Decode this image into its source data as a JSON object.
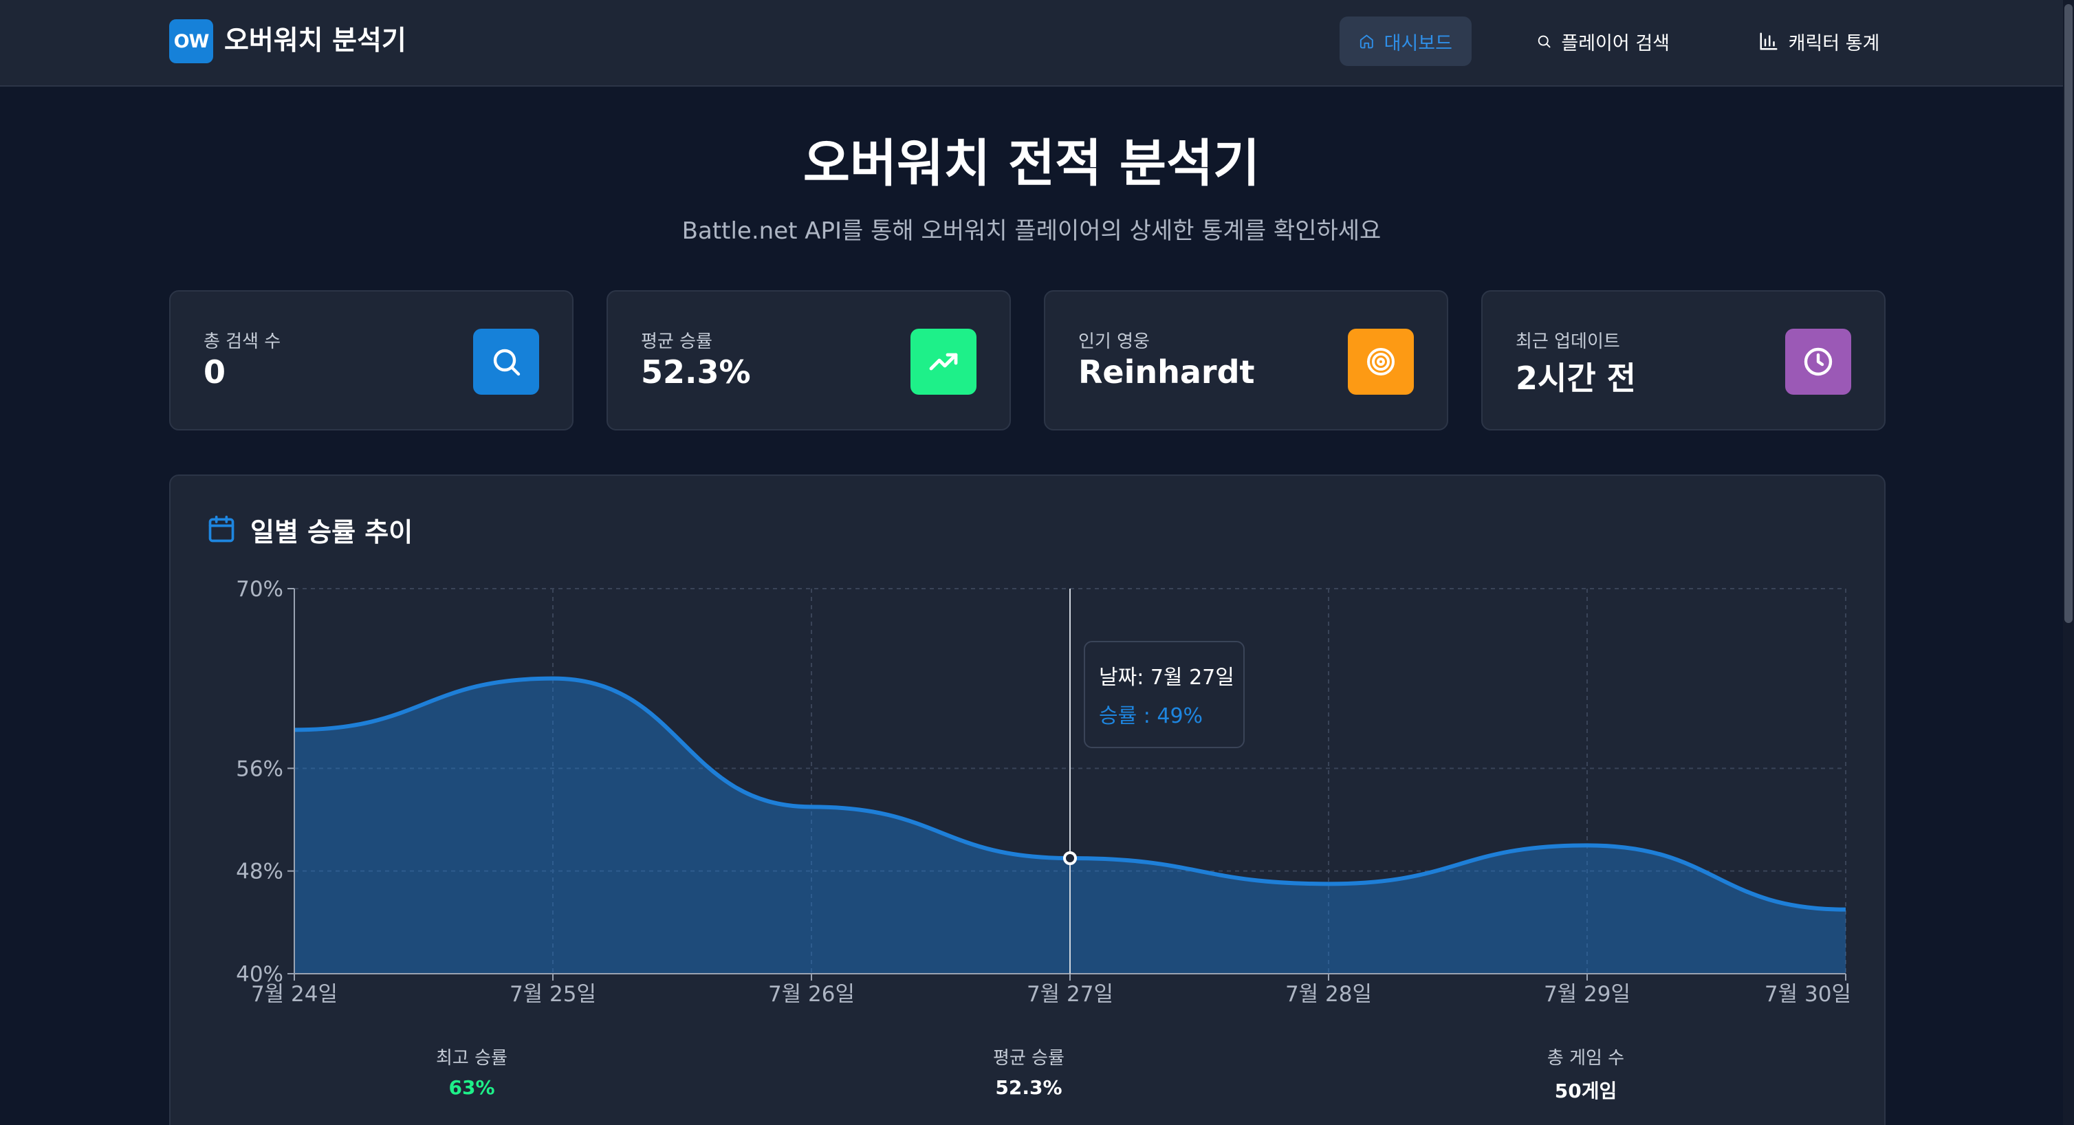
{
  "nav": {
    "logo_badge": "OW",
    "logo_text": "오버워치 분석기",
    "items": [
      {
        "label": "대시보드",
        "icon": "home-icon",
        "active": true
      },
      {
        "label": "플레이어 검색",
        "icon": "search-icon",
        "active": false
      },
      {
        "label": "캐릭터 통계",
        "icon": "bar-chart-icon",
        "active": false
      }
    ]
  },
  "hero": {
    "title": "오버워치 전적 분석기",
    "subtitle": "Battle.net API를 통해 오버워치 플레이어의 상세한 통계를 확인하세요"
  },
  "stats": [
    {
      "label": "총 검색 수",
      "value": "0",
      "icon": "search-icon",
      "color": "#1681d9"
    },
    {
      "label": "평균 승률",
      "value": "52.3%",
      "icon": "trending-up-icon",
      "color": "#1ef089"
    },
    {
      "label": "인기 영웅",
      "value": "Reinhardt",
      "icon": "target-icon",
      "color": "#fd9a14"
    },
    {
      "label": "최근 업데이트",
      "value": "2시간 전",
      "icon": "clock-icon",
      "color": "#9b59b6"
    }
  ],
  "chart_section": {
    "title": "일별 승률 추이",
    "icon": "calendar-icon"
  },
  "chart_data": {
    "type": "area",
    "categories": [
      "7월 24일",
      "7월 25일",
      "7월 26일",
      "7월 27일",
      "7월 28일",
      "7월 29일",
      "7월 30일"
    ],
    "series": [
      {
        "name": "승률",
        "values": [
          59,
          63,
          53,
          49,
          47,
          50,
          45
        ],
        "color": "#1e7fd8"
      }
    ],
    "yticks": [
      40,
      48,
      56,
      70
    ],
    "ytick_labels": [
      "40%",
      "48%",
      "56%",
      "70%"
    ],
    "ylim": [
      40,
      70
    ],
    "grid": true,
    "active_index": 3,
    "tooltip": {
      "date_label": "날짜: 7월 27일",
      "value_label": "승률 : 49%"
    }
  },
  "summary": [
    {
      "label": "최고 승률",
      "value": "63%"
    },
    {
      "label": "평균 승률",
      "value": "52.3%"
    },
    {
      "label": "총 게임 수",
      "value": "50게임"
    }
  ]
}
